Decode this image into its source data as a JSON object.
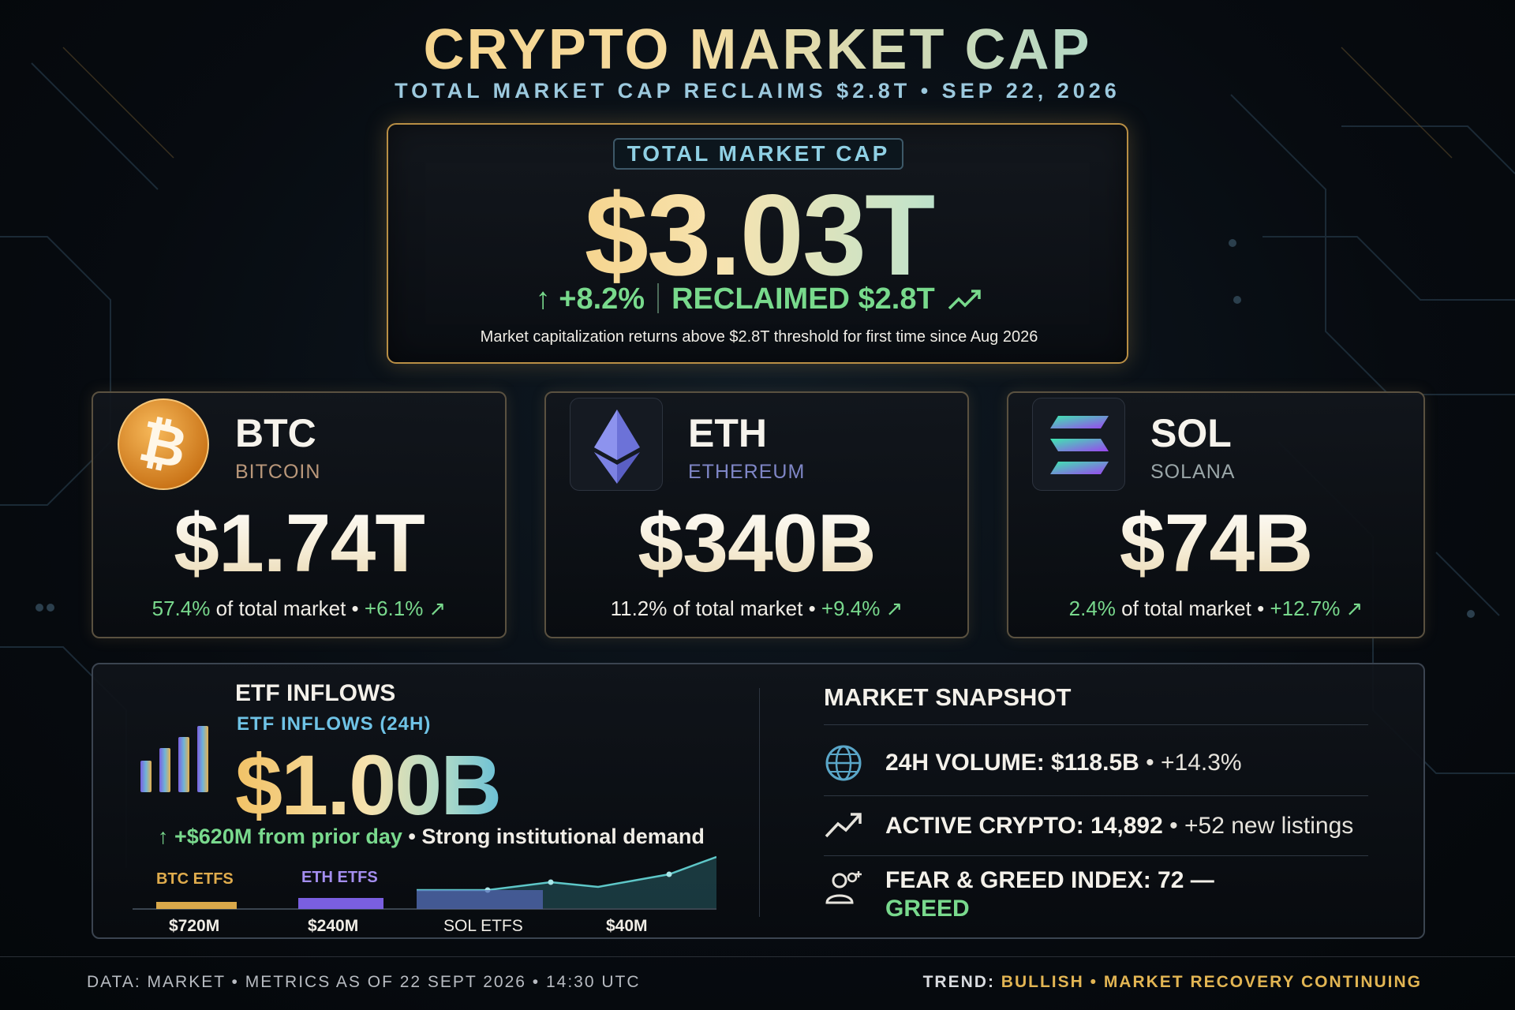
{
  "header": {
    "title": "CRYPTO MARKET CAP",
    "subtitle": "TOTAL MARKET CAP RECLAIMS $2.8T • SEP 22, 2026"
  },
  "hero": {
    "label": "TOTAL MARKET CAP",
    "value": "$3.03T",
    "change": "↑ +8.2%",
    "reclaimed": "RECLAIMED $2.8T",
    "note": "Market capitalization returns above $2.8T threshold for first time since Aug 2026"
  },
  "coins": [
    {
      "symbol": "BTC",
      "name": "BITCOIN",
      "value": "$1.74T",
      "share": "57.4%",
      "share_suffix": " of total market",
      "change": "+6.1% ↗",
      "icon": "bitcoin-icon",
      "name_color": "#b9977a"
    },
    {
      "symbol": "ETH",
      "name": "ETHEREUM",
      "value": "$340B",
      "share": "11.2%",
      "share_suffix": " of total market",
      "change": "+9.4% ↗",
      "icon": "ethereum-icon",
      "name_color": "#7f86c6"
    },
    {
      "symbol": "SOL",
      "name": "SOLANA",
      "value": "$74B",
      "share": "2.4%",
      "share_suffix": " of total market",
      "change": "+12.7% ↗",
      "icon": "solana-icon",
      "name_color": "#9aa6a8"
    }
  ],
  "etf": {
    "title": "ETF INFLOWS",
    "subtitle": "ETF INFLOWS (24H)",
    "value": "$1.00B",
    "change": "↑ +$620M from prior day",
    "change_note": "Strong institutional demand",
    "bars": [
      {
        "label": "BTC ETFS",
        "value": "$720M",
        "color": "#d9a84a"
      },
      {
        "label": "ETH ETFS",
        "value": "$240M",
        "color": "#7a5fe0"
      },
      {
        "label": "SOL ETFS",
        "value": "",
        "color": "#6f8fc8"
      },
      {
        "label": "",
        "value": "$40M",
        "color": "#3fa8a6"
      }
    ]
  },
  "snapshot": {
    "title": "MARKET SNAPSHOT",
    "rows": [
      {
        "icon": "globe-icon",
        "label": "24H VOLUME: $118.5B",
        "extra": "+14.3%"
      },
      {
        "icon": "trend-up-icon",
        "label": "ACTIVE CRYPTO: 14,892",
        "extra": "+52 new listings"
      },
      {
        "icon": "users-icon",
        "label": "FEAR & GREED INDEX: 72 —",
        "extra": "GREED"
      }
    ]
  },
  "footer": {
    "left": "DATA: MARKET • METRICS AS OF 22 SEPT 2026 • 14:30 UTC",
    "right_prefix": "TREND: ",
    "right_trend": "BULLISH",
    "right_sep": " • ",
    "right_note": "MARKET RECOVERY CONTINUING"
  }
}
